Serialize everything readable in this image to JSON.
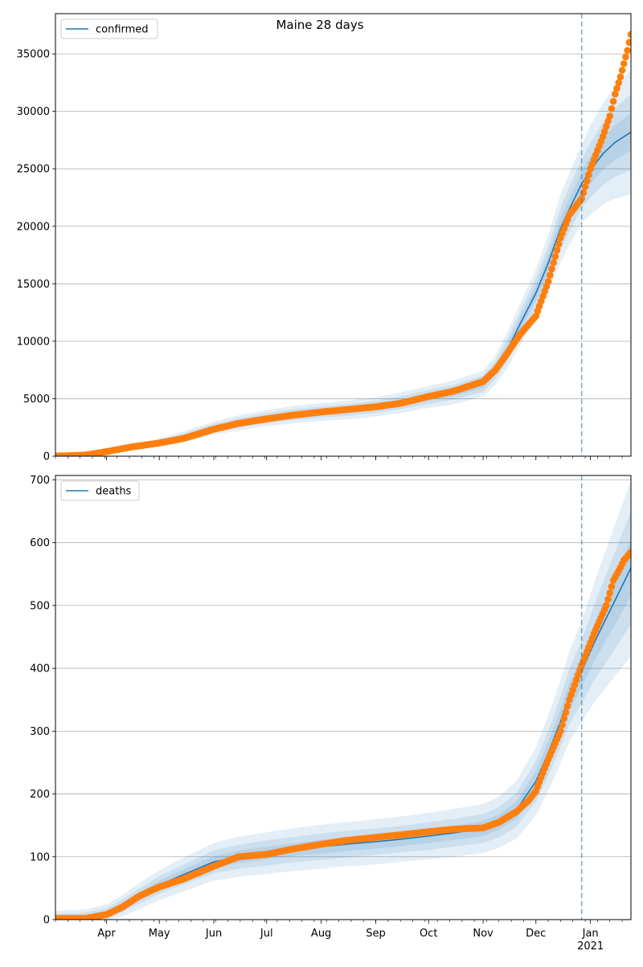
{
  "figure": {
    "title": "Maine 28 days"
  },
  "colors": {
    "line": "#1f77b4",
    "band": "#1f77b4",
    "points": "#ff7f0e",
    "grid": "#b0b0b0",
    "vline": "#1f77b4"
  },
  "chart_data": [
    {
      "type": "line",
      "title": "Maine 28 days",
      "legend": "top-left",
      "grid": "y",
      "x_range": [
        "2020-03-03",
        "2021-01-24"
      ],
      "ylim": [
        0,
        38500
      ],
      "y_ticks": [
        0,
        5000,
        10000,
        15000,
        20000,
        25000,
        30000,
        35000
      ],
      "x_ticks": [
        {
          "label": "Apr",
          "date": "2020-04-01"
        },
        {
          "label": "May",
          "date": "2020-05-01"
        },
        {
          "label": "Jun",
          "date": "2020-06-01"
        },
        {
          "label": "Jul",
          "date": "2020-07-01"
        },
        {
          "label": "Aug",
          "date": "2020-08-01"
        },
        {
          "label": "Sep",
          "date": "2020-09-01"
        },
        {
          "label": "Oct",
          "date": "2020-10-01"
        },
        {
          "label": "Nov",
          "date": "2020-11-01"
        },
        {
          "label": "Dec",
          "date": "2020-12-01"
        },
        {
          "label": "Jan",
          "date": "2021-01-01"
        }
      ],
      "show_x_labels": false,
      "vline_date": "2020-12-27",
      "model": {
        "name": "confirmed",
        "x": [
          "2020-03-03",
          "2020-03-20",
          "2020-04-01",
          "2020-04-15",
          "2020-05-01",
          "2020-05-15",
          "2020-06-01",
          "2020-06-15",
          "2020-07-01",
          "2020-07-15",
          "2020-08-01",
          "2020-08-15",
          "2020-09-01",
          "2020-09-15",
          "2020-10-01",
          "2020-10-15",
          "2020-11-01",
          "2020-11-08",
          "2020-11-15",
          "2020-11-22",
          "2020-12-01",
          "2020-12-08",
          "2020-12-15",
          "2020-12-20",
          "2020-12-27",
          "2021-01-01",
          "2021-01-08",
          "2021-01-15",
          "2021-01-24"
        ],
        "y": [
          0,
          60,
          350,
          700,
          1200,
          1700,
          2450,
          2900,
          3300,
          3600,
          3850,
          4000,
          4300,
          4650,
          5150,
          5550,
          6300,
          7500,
          9300,
          11500,
          14200,
          16800,
          19800,
          21500,
          23700,
          24900,
          26300,
          27300,
          28200
        ],
        "band_widths": [
          [
            0,
            15,
            40,
            70,
            110,
            140,
            180,
            200,
            220,
            230,
            240,
            250,
            260,
            280,
            300,
            320,
            350,
            400,
            480,
            550,
            650,
            750,
            900,
            950,
            1050,
            1200,
            1400,
            1500,
            1600
          ],
          [
            0,
            30,
            80,
            140,
            220,
            280,
            360,
            400,
            440,
            460,
            480,
            500,
            520,
            560,
            600,
            640,
            700,
            800,
            960,
            1100,
            1300,
            1500,
            1800,
            1950,
            2100,
            2400,
            2700,
            3000,
            3300
          ],
          [
            0,
            50,
            130,
            230,
            360,
            460,
            580,
            650,
            710,
            750,
            780,
            810,
            840,
            900,
            960,
            1030,
            1130,
            1300,
            1550,
            1800,
            2100,
            2450,
            2950,
            3150,
            3400,
            3900,
            4400,
            4900,
            5400
          ]
        ]
      },
      "points": {
        "x": [
          "2020-03-03",
          "2020-03-20",
          "2020-04-01",
          "2020-04-15",
          "2020-05-01",
          "2020-05-15",
          "2020-06-01",
          "2020-06-15",
          "2020-07-01",
          "2020-07-15",
          "2020-08-01",
          "2020-08-15",
          "2020-09-01",
          "2020-09-15",
          "2020-10-01",
          "2020-10-15",
          "2020-11-01",
          "2020-11-08",
          "2020-11-15",
          "2020-11-22",
          "2020-12-01",
          "2020-12-08",
          "2020-12-15",
          "2020-12-20",
          "2020-12-27",
          "2021-01-01",
          "2021-01-04",
          "2021-01-08",
          "2021-01-12",
          "2021-01-15",
          "2021-01-18",
          "2021-01-22",
          "2021-01-24"
        ],
        "y": [
          5,
          100,
          400,
          800,
          1150,
          1550,
          2350,
          2850,
          3250,
          3550,
          3850,
          4050,
          4300,
          4600,
          5200,
          5650,
          6500,
          7500,
          9000,
          10600,
          12200,
          15200,
          19000,
          21000,
          22400,
          25000,
          26200,
          27800,
          29600,
          31500,
          33000,
          35300,
          36700
        ]
      }
    },
    {
      "type": "line",
      "legend": "top-left",
      "grid": "y",
      "x_range": [
        "2020-03-03",
        "2021-01-24"
      ],
      "ylim": [
        0,
        707
      ],
      "y_ticks": [
        0,
        100,
        200,
        300,
        400,
        500,
        600,
        700
      ],
      "x_ticks": [
        {
          "label": "Apr",
          "date": "2020-04-01"
        },
        {
          "label": "May",
          "date": "2020-05-01"
        },
        {
          "label": "Jun",
          "date": "2020-06-01"
        },
        {
          "label": "Jul",
          "date": "2020-07-01"
        },
        {
          "label": "Aug",
          "date": "2020-08-01"
        },
        {
          "label": "Sep",
          "date": "2020-09-01"
        },
        {
          "label": "Oct",
          "date": "2020-10-01"
        },
        {
          "label": "Nov",
          "date": "2020-11-01"
        },
        {
          "label": "Dec",
          "date": "2020-12-01"
        },
        {
          "label": "Jan",
          "date": "2021-01-01"
        }
      ],
      "year_label": "2021",
      "show_x_labels": true,
      "vline_date": "2020-12-27",
      "model": {
        "name": "deaths",
        "x": [
          "2020-03-03",
          "2020-03-20",
          "2020-04-01",
          "2020-04-10",
          "2020-04-20",
          "2020-05-01",
          "2020-05-15",
          "2020-06-01",
          "2020-06-15",
          "2020-07-01",
          "2020-07-15",
          "2020-08-01",
          "2020-08-15",
          "2020-09-01",
          "2020-09-15",
          "2020-10-01",
          "2020-10-15",
          "2020-11-01",
          "2020-11-10",
          "2020-11-20",
          "2020-12-01",
          "2020-12-08",
          "2020-12-15",
          "2020-12-20",
          "2020-12-27",
          "2021-01-03",
          "2021-01-10",
          "2021-01-17",
          "2021-01-24"
        ],
        "y": [
          2,
          4,
          10,
          22,
          38,
          55,
          72,
          92,
          100,
          106,
          111,
          116,
          120,
          124,
          128,
          133,
          138,
          145,
          155,
          175,
          220,
          265,
          315,
          355,
          395,
          440,
          480,
          520,
          560
        ],
        "band_widths": [
          [
            3,
            3,
            4,
            5,
            6,
            7,
            8,
            9,
            10,
            10,
            10,
            11,
            11,
            11,
            11,
            11,
            11,
            12,
            12,
            14,
            16,
            18,
            20,
            22,
            25,
            30,
            35,
            40,
            45
          ],
          [
            7,
            7,
            8,
            10,
            12,
            14,
            16,
            18,
            19,
            20,
            20,
            21,
            21,
            21,
            21,
            22,
            22,
            23,
            24,
            27,
            32,
            36,
            40,
            44,
            50,
            60,
            70,
            80,
            90
          ],
          [
            12,
            12,
            14,
            17,
            21,
            24,
            27,
            30,
            32,
            33,
            34,
            35,
            35,
            36,
            36,
            37,
            38,
            39,
            41,
            46,
            54,
            60,
            66,
            72,
            80,
            95,
            110,
            125,
            140
          ]
        ]
      },
      "points": {
        "x": [
          "2020-03-03",
          "2020-03-20",
          "2020-04-01",
          "2020-04-10",
          "2020-04-20",
          "2020-05-01",
          "2020-05-15",
          "2020-06-01",
          "2020-06-15",
          "2020-07-01",
          "2020-07-15",
          "2020-08-01",
          "2020-08-15",
          "2020-09-01",
          "2020-09-15",
          "2020-10-01",
          "2020-10-15",
          "2020-11-01",
          "2020-11-10",
          "2020-11-20",
          "2020-11-27",
          "2020-12-01",
          "2020-12-08",
          "2020-12-15",
          "2020-12-20",
          "2020-12-27",
          "2021-01-03",
          "2021-01-10",
          "2021-01-14",
          "2021-01-17",
          "2021-01-20",
          "2021-01-24"
        ],
        "y": [
          2,
          2,
          8,
          20,
          38,
          52,
          65,
          85,
          100,
          104,
          112,
          120,
          126,
          131,
          135,
          140,
          144,
          146,
          155,
          172,
          190,
          205,
          255,
          300,
          350,
          405,
          455,
          500,
          540,
          555,
          572,
          585
        ]
      }
    }
  ]
}
